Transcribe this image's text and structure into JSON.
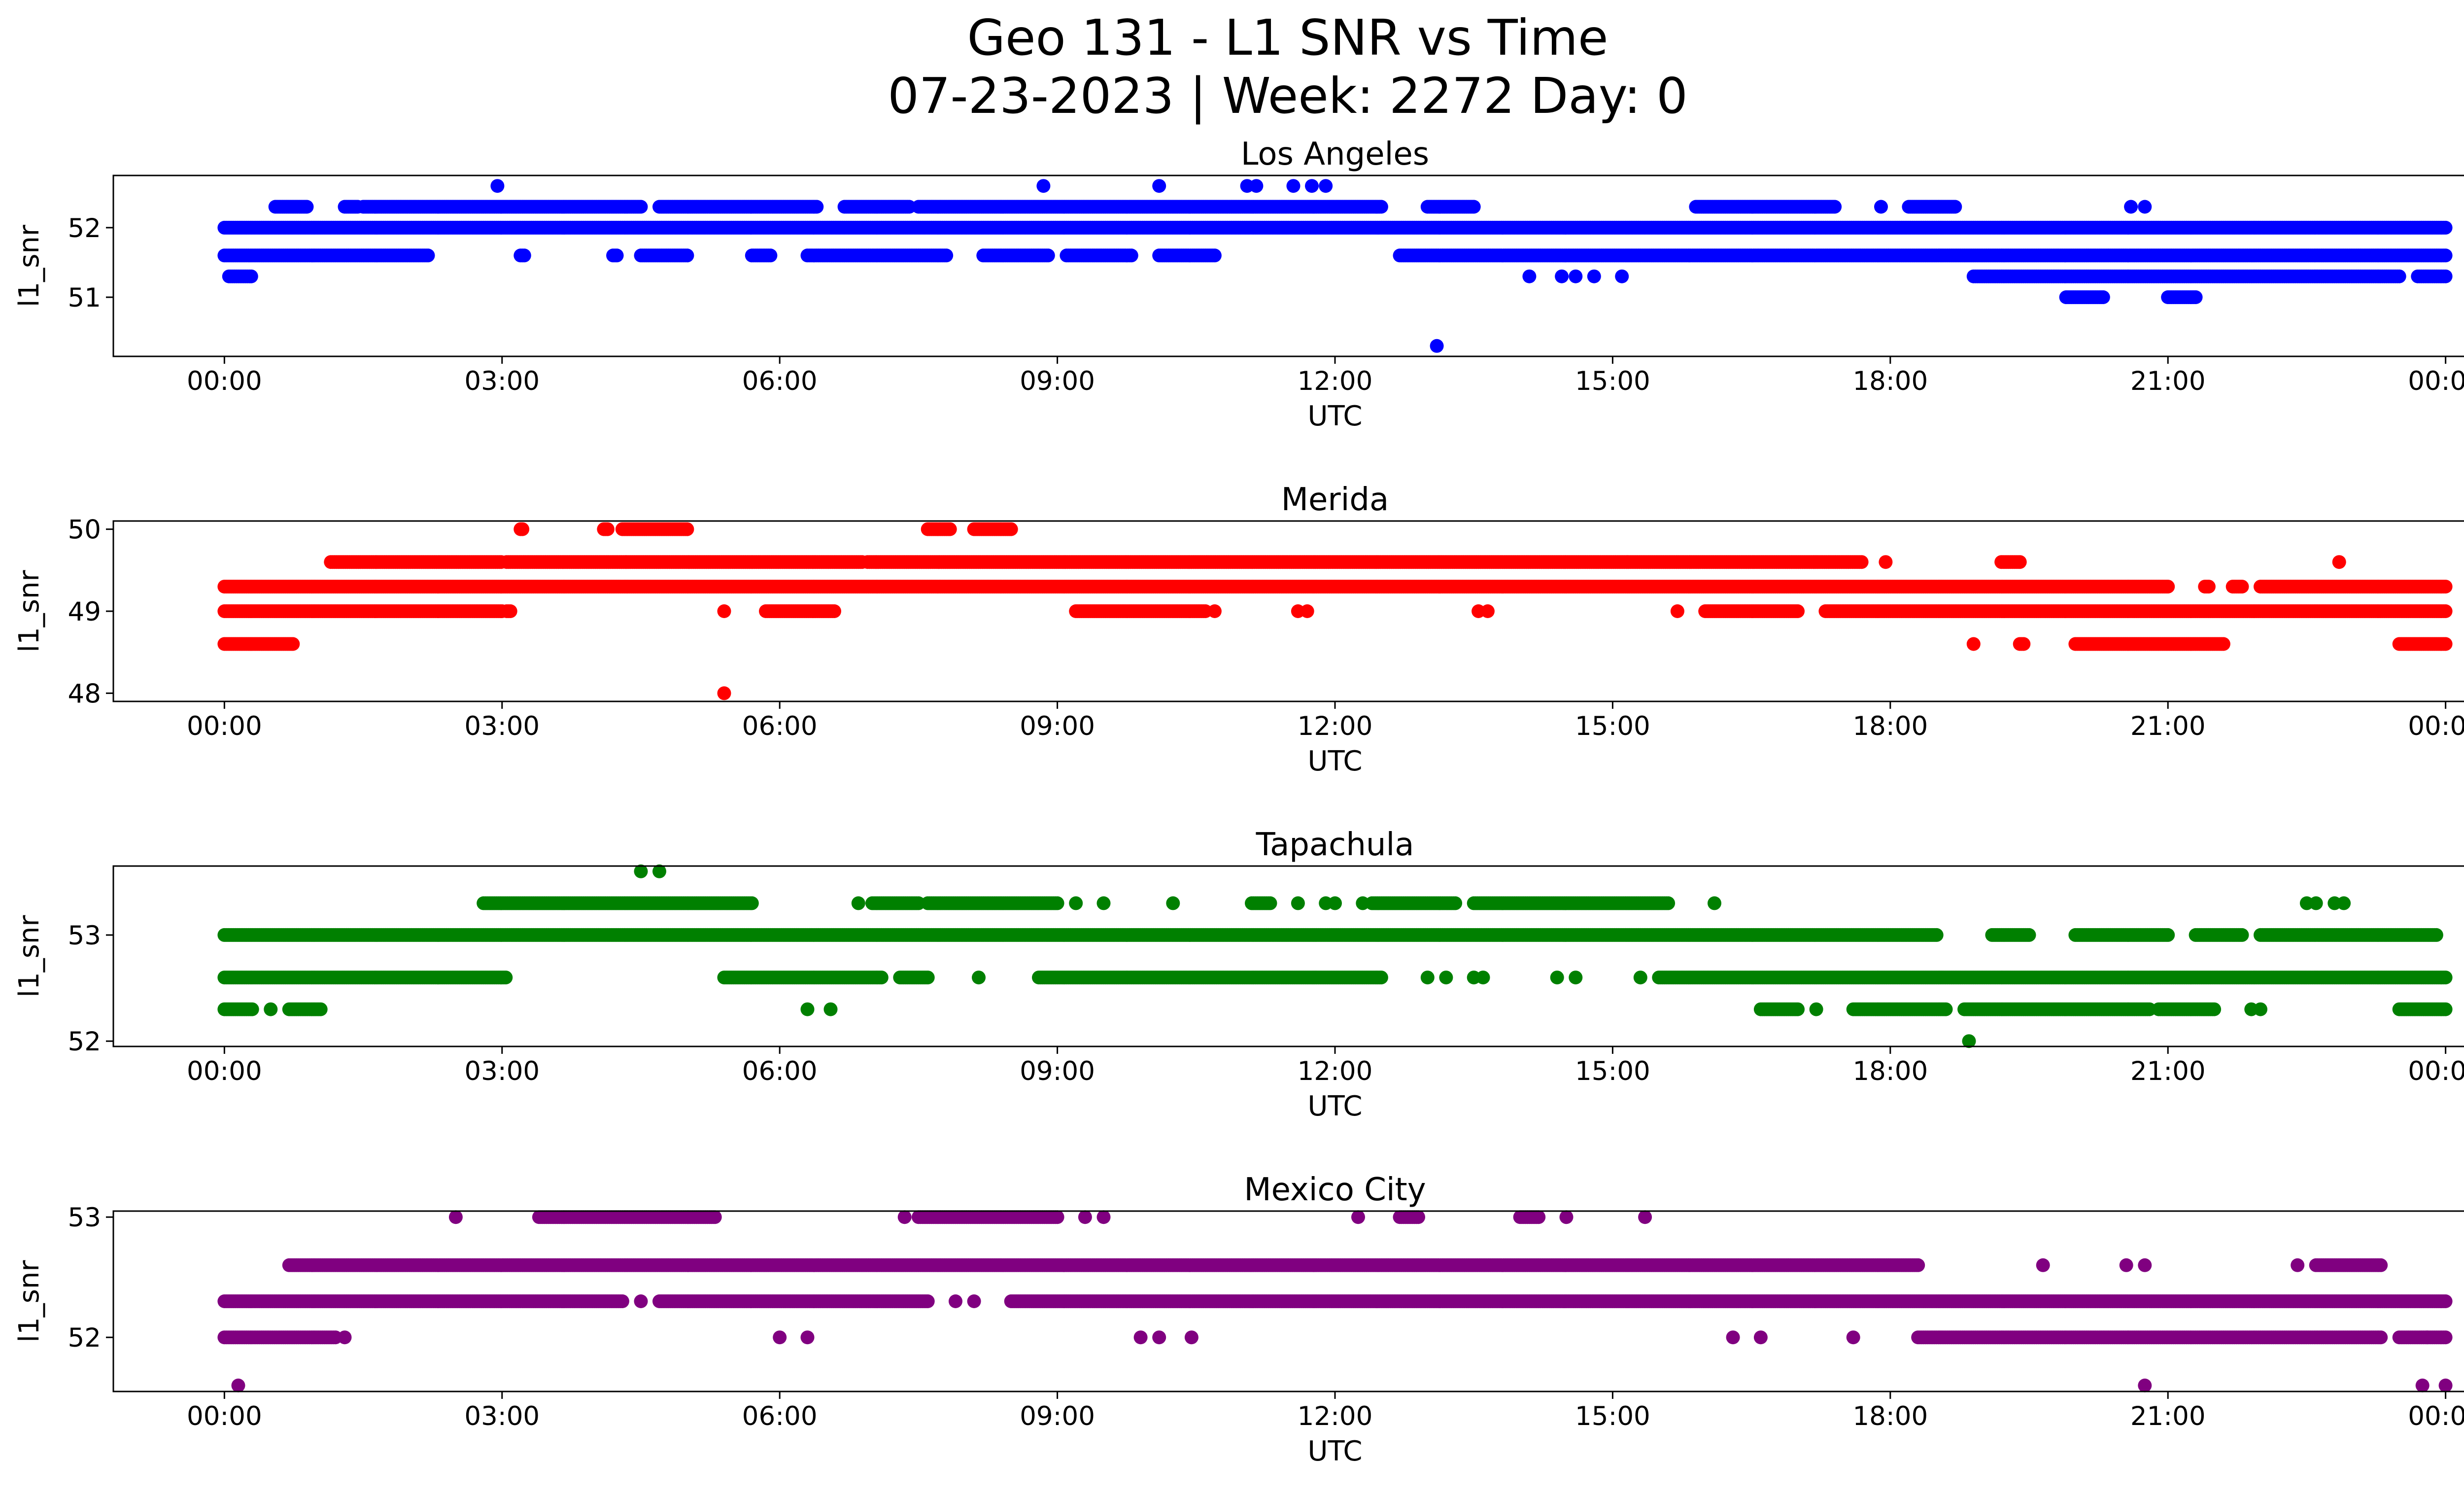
{
  "figure": {
    "title_line1": "Geo 131 - L1 SNR vs Time",
    "title_line2": "07-23-2023 | Week: 2272 Day: 0"
  },
  "chart_data": [
    {
      "type": "scatter",
      "title": "Los Angeles",
      "xlabel": "UTC",
      "ylabel": "l1_snr",
      "color": "#0000ff",
      "xlim_hours": [
        -1.2,
        25.2
      ],
      "ylim": [
        50.15,
        52.75
      ],
      "xticks": [
        "00:00",
        "03:00",
        "06:00",
        "09:00",
        "12:00",
        "15:00",
        "18:00",
        "21:00",
        "00:00"
      ],
      "xtick_hours": [
        0,
        3,
        6,
        9,
        12,
        15,
        18,
        21,
        24
      ],
      "yticks": [
        51,
        52
      ],
      "series": [
        {
          "y": 52.0,
          "segments": [
            [
              0,
              24
            ]
          ]
        },
        {
          "y": 51.6,
          "segments": [
            [
              0,
              2.2
            ],
            [
              3.2,
              3.25
            ],
            [
              4.2,
              4.25
            ],
            [
              4.5,
              5.0
            ],
            [
              5.7,
              5.9
            ],
            [
              6.3,
              7.8
            ],
            [
              8.2,
              8.9
            ],
            [
              9.1,
              9.8
            ],
            [
              10.1,
              10.7
            ],
            [
              12.7,
              24
            ]
          ]
        },
        {
          "y": 52.3,
          "segments": [
            [
              0.55,
              0.9
            ],
            [
              1.3,
              1.45
            ],
            [
              1.5,
              4.5
            ],
            [
              4.7,
              6.4
            ],
            [
              6.7,
              7.4
            ],
            [
              7.5,
              12.5
            ],
            [
              13.0,
              13.5
            ],
            [
              15.9,
              17.4
            ],
            [
              18.2,
              18.7
            ]
          ]
        },
        {
          "y": 51.3,
          "segments": [
            [
              0.05,
              0.3
            ],
            [
              18.9,
              23.5
            ],
            [
              23.7,
              24
            ]
          ]
        },
        {
          "y": 52.6,
          "points": [
            2.95,
            8.85,
            10.1,
            11.05,
            11.15,
            11.55,
            11.75,
            11.9
          ]
        },
        {
          "y": 52.3,
          "points": [
            17.9,
            20.6,
            20.75
          ]
        },
        {
          "y": 51.3,
          "points": [
            14.1,
            14.45,
            14.6,
            14.8,
            15.1
          ]
        },
        {
          "y": 51.0,
          "segments": [
            [
              19.9,
              20.3
            ],
            [
              21.0,
              21.3
            ]
          ]
        },
        {
          "y": 50.3,
          "points": [
            13.1
          ]
        }
      ]
    },
    {
      "type": "scatter",
      "title": "Merida",
      "xlabel": "UTC",
      "ylabel": "l1_snr",
      "color": "#ff0000",
      "xlim_hours": [
        -1.2,
        25.2
      ],
      "ylim": [
        47.9,
        50.1
      ],
      "xticks": [
        "00:00",
        "03:00",
        "06:00",
        "09:00",
        "12:00",
        "15:00",
        "18:00",
        "21:00",
        "00:00"
      ],
      "xtick_hours": [
        0,
        3,
        6,
        9,
        12,
        15,
        18,
        21,
        24
      ],
      "yticks": [
        48,
        49,
        50
      ],
      "series": [
        {
          "y": 49.3,
          "segments": [
            [
              0,
              21.0
            ],
            [
              21.4,
              21.45
            ],
            [
              21.7,
              21.8
            ],
            [
              22.0,
              24
            ]
          ]
        },
        {
          "y": 49.0,
          "segments": [
            [
              0,
              3.0
            ],
            [
              3.05,
              3.1
            ],
            [
              5.85,
              6.6
            ],
            [
              9.2,
              10.6
            ],
            [
              16.0,
              17.0
            ],
            [
              17.3,
              24
            ]
          ]
        },
        {
          "y": 49.6,
          "segments": [
            [
              1.15,
              3.0
            ],
            [
              3.05,
              6.9
            ],
            [
              6.95,
              17.7
            ],
            [
              19.2,
              19.4
            ]
          ]
        },
        {
          "y": 48.6,
          "segments": [
            [
              0,
              0.75
            ],
            [
              19.4,
              19.45
            ],
            [
              20.0,
              21.6
            ],
            [
              23.5,
              24
            ]
          ]
        },
        {
          "y": 49.0,
          "points": [
            5.4,
            10.7,
            11.6,
            11.7,
            13.55,
            13.65,
            15.7
          ]
        },
        {
          "y": 49.6,
          "points": [
            17.95,
            22.85
          ]
        },
        {
          "y": 50.0,
          "segments": [
            [
              3.2,
              3.22
            ],
            [
              4.1,
              4.15
            ],
            [
              4.3,
              5.0
            ],
            [
              7.6,
              7.85
            ],
            [
              8.1,
              8.5
            ]
          ]
        },
        {
          "y": 48.6,
          "points": [
            18.9
          ]
        },
        {
          "y": 48.0,
          "points": [
            5.4
          ]
        }
      ]
    },
    {
      "type": "scatter",
      "title": "Tapachula",
      "xlabel": "UTC",
      "ylabel": "l1_snr",
      "color": "#008000",
      "xlim_hours": [
        -1.2,
        25.2
      ],
      "ylim": [
        51.95,
        53.65
      ],
      "xticks": [
        "00:00",
        "03:00",
        "06:00",
        "09:00",
        "12:00",
        "15:00",
        "18:00",
        "21:00",
        "00:00"
      ],
      "xtick_hours": [
        0,
        3,
        6,
        9,
        12,
        15,
        18,
        21,
        24
      ],
      "yticks": [
        52,
        53
      ],
      "series": [
        {
          "y": 53.0,
          "segments": [
            [
              0,
              18.5
            ],
            [
              19.1,
              19.5
            ],
            [
              20.0,
              21.0
            ],
            [
              21.3,
              21.8
            ],
            [
              22.0,
              23.9
            ]
          ]
        },
        {
          "y": 52.6,
          "segments": [
            [
              0,
              3.05
            ],
            [
              5.4,
              7.1
            ],
            [
              7.3,
              7.6
            ],
            [
              8.8,
              12.5
            ],
            [
              15.5,
              24
            ]
          ]
        },
        {
          "y": 53.3,
          "segments": [
            [
              2.8,
              5.7
            ],
            [
              7.0,
              7.5
            ],
            [
              7.6,
              9.0
            ],
            [
              11.1,
              11.3
            ],
            [
              12.4,
              13.3
            ],
            [
              13.5,
              15.6
            ]
          ]
        },
        {
          "y": 52.3,
          "segments": [
            [
              0,
              0.3
            ],
            [
              0.7,
              1.05
            ],
            [
              16.6,
              17.0
            ],
            [
              17.6,
              18.6
            ],
            [
              18.8,
              20.8
            ],
            [
              20.9,
              21.5
            ],
            [
              23.5,
              24
            ]
          ]
        },
        {
          "y": 53.3,
          "points": [
            6.85,
            9.2,
            9.5,
            10.25,
            11.6,
            11.9,
            12.0,
            12.3,
            16.1,
            22.5,
            22.6,
            22.8,
            22.9
          ]
        },
        {
          "y": 52.6,
          "points": [
            8.15,
            13.0,
            13.2,
            13.5,
            13.6,
            14.4,
            14.6,
            15.3
          ]
        },
        {
          "y": 52.3,
          "points": [
            0.5,
            6.3,
            6.55,
            17.2,
            21.9,
            22.0
          ]
        },
        {
          "y": 53.6,
          "points": [
            4.5,
            4.7
          ]
        },
        {
          "y": 52.0,
          "points": [
            18.85
          ]
        }
      ]
    },
    {
      "type": "scatter",
      "title": "Mexico City",
      "xlabel": "UTC",
      "ylabel": "l1_snr",
      "color": "#800080",
      "xlim_hours": [
        -1.2,
        25.2
      ],
      "ylim": [
        51.55,
        53.05
      ],
      "xticks": [
        "00:00",
        "03:00",
        "06:00",
        "09:00",
        "12:00",
        "15:00",
        "18:00",
        "21:00",
        "00:00"
      ],
      "xtick_hours": [
        0,
        3,
        6,
        9,
        12,
        15,
        18,
        21,
        24
      ],
      "yticks": [
        52,
        53
      ],
      "series": [
        {
          "y": 52.3,
          "segments": [
            [
              0,
              4.3
            ],
            [
              4.7,
              7.6
            ],
            [
              8.5,
              24
            ]
          ]
        },
        {
          "y": 52.6,
          "segments": [
            [
              0.7,
              18.3
            ]
          ]
        },
        {
          "y": 52.0,
          "segments": [
            [
              0,
              1.2
            ],
            [
              18.3,
              23.3
            ],
            [
              23.5,
              24
            ]
          ]
        },
        {
          "y": 53.0,
          "segments": [
            [
              3.4,
              5.3
            ],
            [
              7.5,
              9.0
            ],
            [
              12.7,
              12.9
            ],
            [
              14.0,
              14.2
            ]
          ]
        },
        {
          "y": 53.0,
          "points": [
            2.5,
            7.35,
            9.3,
            9.5,
            12.25,
            14.5,
            15.35
          ]
        },
        {
          "y": 52.6,
          "points": [
            19.65,
            20.55,
            20.75,
            22.4
          ]
        },
        {
          "y": 52.6,
          "segments": [
            [
              22.6,
              23.3
            ]
          ]
        },
        {
          "y": 52.3,
          "points": [
            4.5,
            7.9,
            8.1
          ]
        },
        {
          "y": 52.0,
          "points": [
            1.3,
            6.0,
            6.3,
            9.9,
            10.1,
            10.45,
            16.3,
            16.6,
            17.6,
            23.8
          ]
        },
        {
          "y": 51.6,
          "points": [
            0.15,
            20.75,
            23.75,
            24.0
          ]
        }
      ]
    }
  ]
}
